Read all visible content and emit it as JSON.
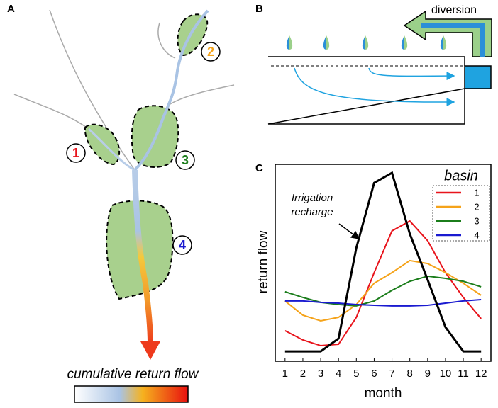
{
  "panel_labels": [
    "A",
    "B",
    "C"
  ],
  "diagram_a": {
    "basin_labels": [
      "1",
      "2",
      "3",
      "4"
    ],
    "colorbar_label": "cumulative return flow"
  },
  "diagram_b": {
    "diversion_label": "diversion"
  },
  "chart_data": {
    "type": "line",
    "x_label": "month",
    "y_label": "return flow",
    "legend_title": "basin",
    "annotation": [
      "Irrigation",
      "recharge"
    ],
    "x": [
      1,
      2,
      3,
      4,
      5,
      6,
      7,
      8,
      9,
      10,
      11,
      12
    ],
    "xlim": [
      0.45,
      12.55
    ],
    "xticks": [
      1,
      2,
      3,
      4,
      5,
      6,
      7,
      8,
      9,
      10,
      11,
      12
    ],
    "ylim": [
      0,
      100
    ],
    "recharge": {
      "color": "#000000",
      "values": [
        5.0,
        5.0,
        5.0,
        11.5,
        57.6,
        90.6,
        95.7,
        64.7,
        41.4,
        17.3,
        5.0,
        5.0
      ]
    },
    "series": [
      {
        "name": "1",
        "color": "#e8141c",
        "values": [
          15.5,
          10.8,
          7.9,
          8.6,
          22.3,
          45.0,
          66.2,
          71.2,
          61.2,
          45.0,
          32.4,
          21.6
        ]
      },
      {
        "name": "2",
        "color": "#f5a31a",
        "values": [
          30.6,
          23.4,
          20.5,
          22.3,
          28.8,
          39.6,
          45.0,
          51.1,
          49.6,
          45.0,
          39.6,
          33.5
        ]
      },
      {
        "name": "3",
        "color": "#1b7d1b",
        "values": [
          35.3,
          32.4,
          29.9,
          28.8,
          28.1,
          30.6,
          36.0,
          40.6,
          43.2,
          42.1,
          40.6,
          37.8
        ]
      },
      {
        "name": "4",
        "color": "#1a1ad0",
        "values": [
          30.6,
          30.6,
          29.9,
          29.5,
          28.8,
          28.4,
          28.1,
          28.1,
          28.4,
          29.5,
          30.6,
          31.3
        ]
      }
    ]
  }
}
